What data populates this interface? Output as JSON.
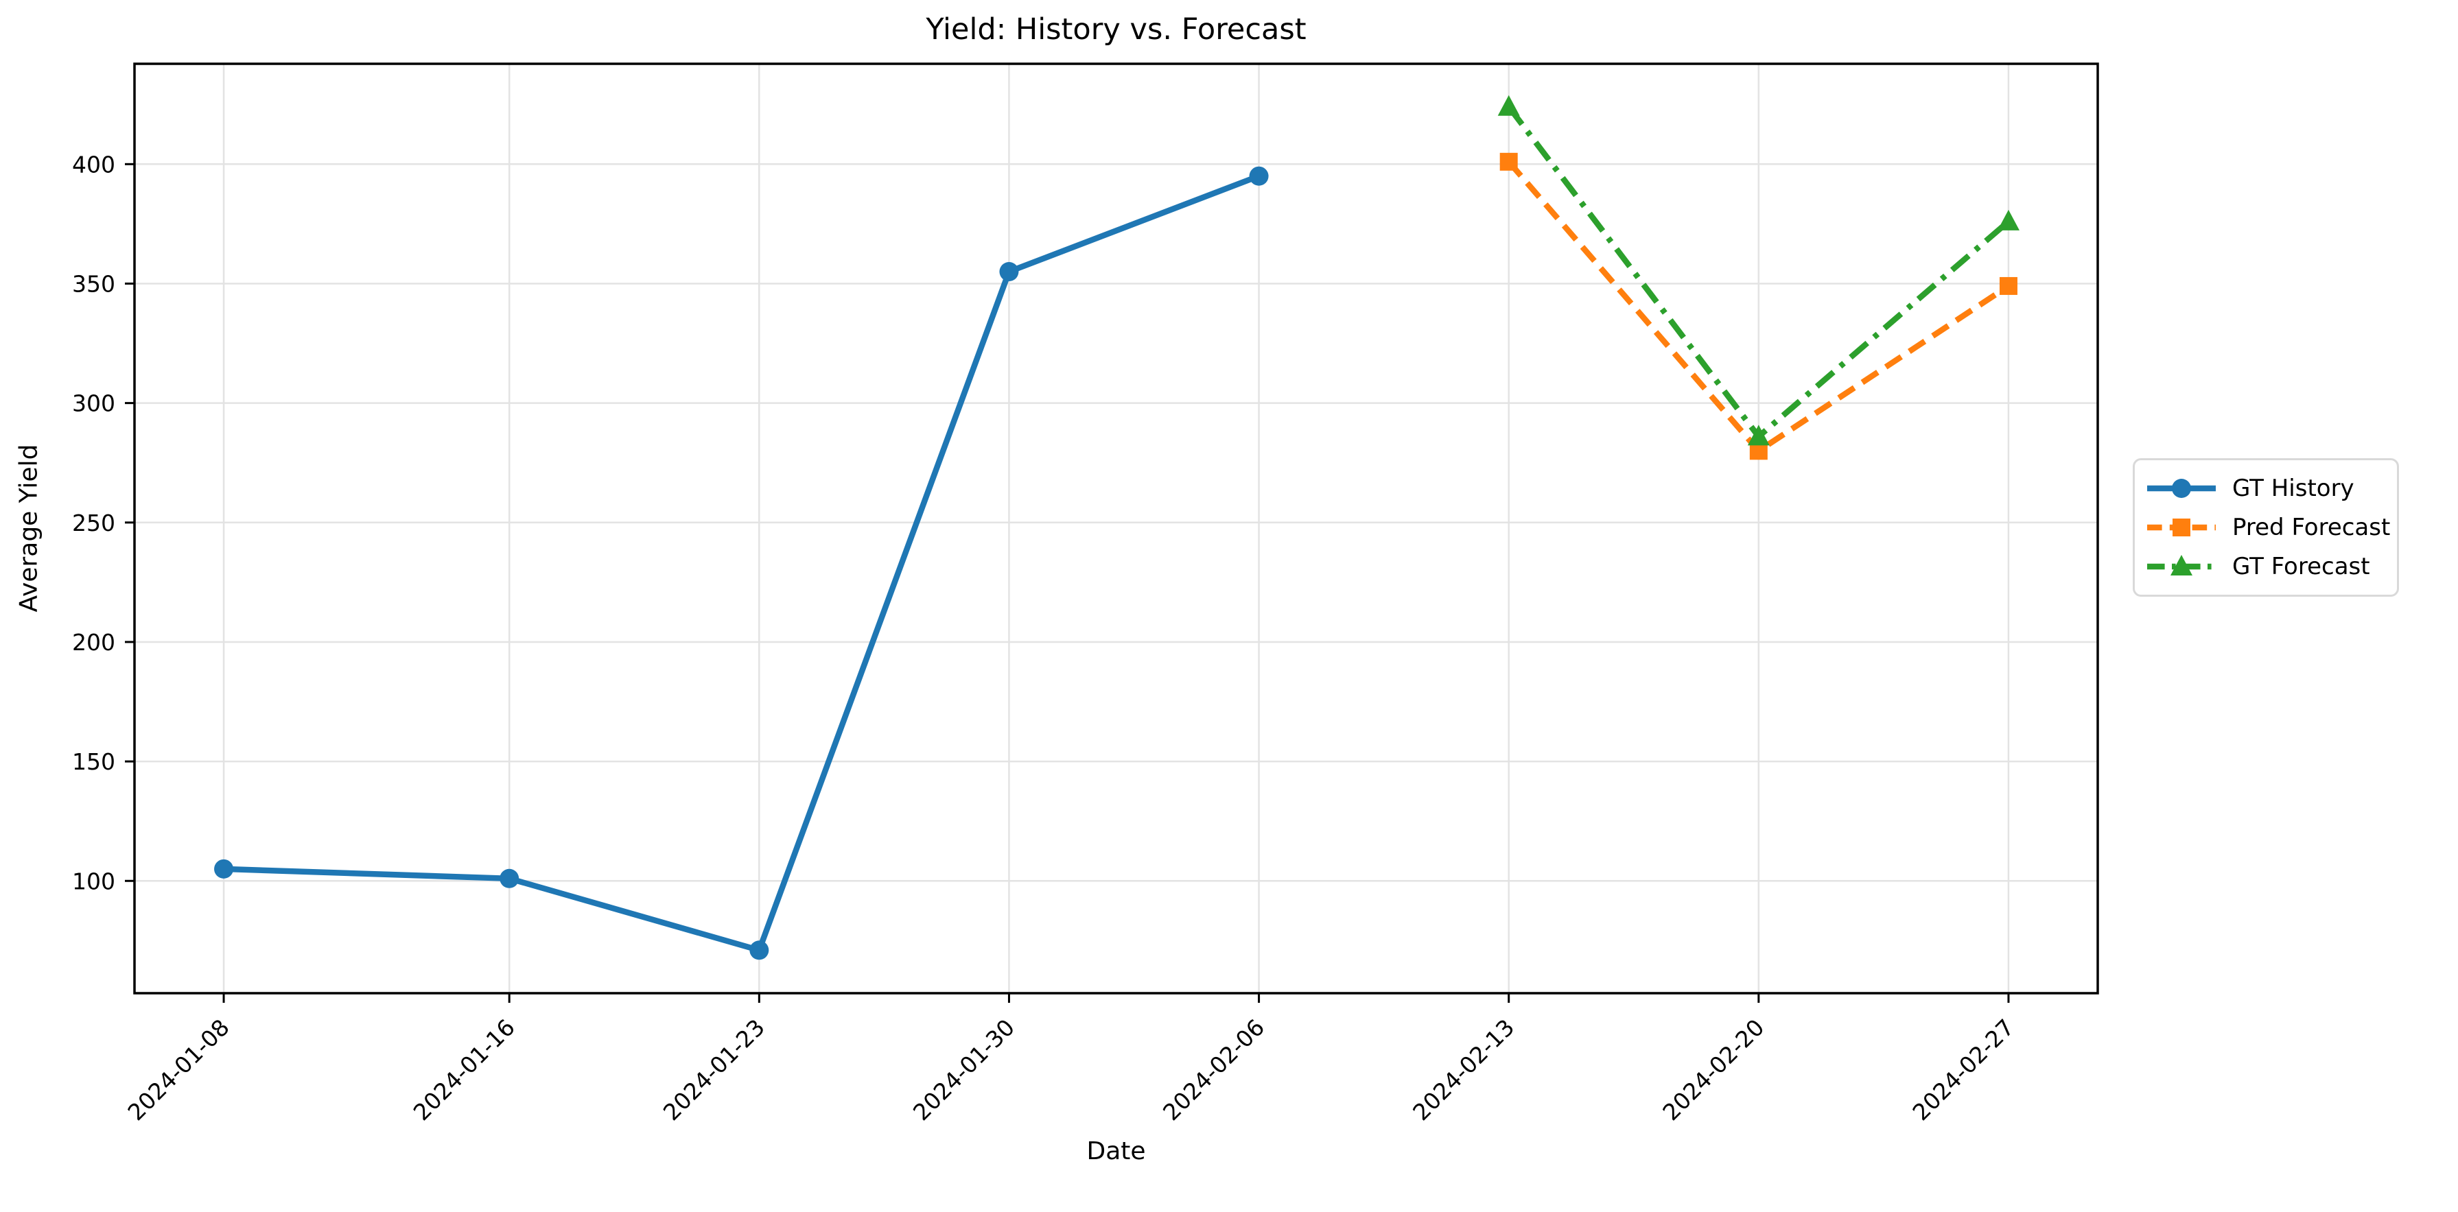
{
  "chart_data": {
    "type": "line",
    "title": "Yield: History vs. Forecast",
    "xlabel": "Date",
    "ylabel": "Average Yield",
    "grid": true,
    "grid_color": "#e3e3e3",
    "background_color": "#ffffff",
    "spine_color": "#000000",
    "legend_position": "center-left outside right edge of axes",
    "x_tick_labels": [
      "2024-01-08",
      "2024-01-16",
      "2024-01-23",
      "2024-01-30",
      "2024-02-06",
      "2024-02-13",
      "2024-02-20",
      "2024-02-27"
    ],
    "x_tick_days": [
      0,
      8,
      15,
      22,
      29,
      36,
      43,
      50
    ],
    "x_tick_rotation_deg": 45,
    "xlim_days": [
      -2.5,
      52.5
    ],
    "y_ticks": [
      100,
      150,
      200,
      250,
      300,
      350,
      400
    ],
    "ylim": [
      53,
      442
    ],
    "series": [
      {
        "name": "GT History",
        "color": "#1f77b4",
        "line_style": "solid",
        "marker": "circle",
        "dates": [
          "2024-01-08",
          "2024-01-16",
          "2024-01-23",
          "2024-01-30",
          "2024-02-06"
        ],
        "x_days": [
          0,
          8,
          15,
          22,
          29
        ],
        "values": [
          105,
          101,
          71,
          355,
          395
        ]
      },
      {
        "name": "Pred Forecast",
        "color": "#ff7f0e",
        "line_style": "dashed",
        "marker": "square",
        "dates": [
          "2024-02-13",
          "2024-02-20",
          "2024-02-27"
        ],
        "x_days": [
          36,
          43,
          50
        ],
        "values": [
          401,
          280,
          349
        ]
      },
      {
        "name": "GT Forecast",
        "color": "#2ca02c",
        "line_style": "dashdot",
        "marker": "triangle",
        "dates": [
          "2024-02-13",
          "2024-02-20",
          "2024-02-27"
        ],
        "x_days": [
          36,
          43,
          50
        ],
        "values": [
          424,
          286,
          376
        ]
      }
    ]
  }
}
